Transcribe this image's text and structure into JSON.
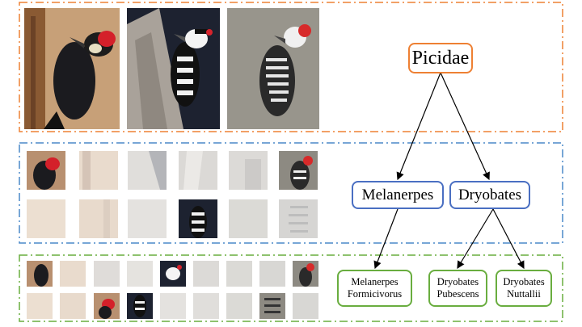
{
  "colors": {
    "family_level": "#ee8033",
    "genus_level": "#4a6fc2",
    "species_level": "#69ad3f"
  },
  "tree": {
    "root": {
      "label": "Picidae"
    },
    "genera": [
      {
        "label": "Melanerpes"
      },
      {
        "label": "Dryobates"
      }
    ],
    "species": [
      {
        "line1": "Melanerpes",
        "line2": "Formicivorus"
      },
      {
        "line1": "Dryobates",
        "line2": "Pubescens"
      },
      {
        "line1": "Dryobates",
        "line2": "Nuttallii"
      }
    ]
  }
}
